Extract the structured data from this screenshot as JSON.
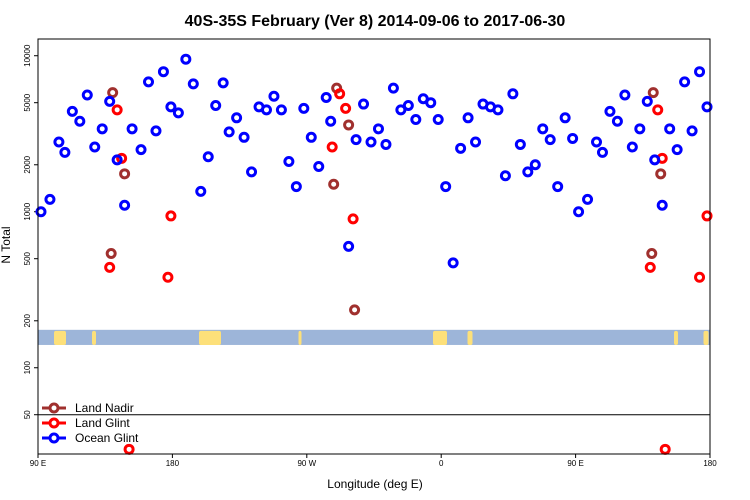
{
  "chart_data": {
    "type": "scatter",
    "title": "40S-35S February (Ver 8)   2014-09-06 to 2017-06-30",
    "xlabel": "Longitude (deg E)",
    "ylabel": "N Total",
    "x_ticks": [
      {
        "label": "90 E",
        "x": 0
      },
      {
        "label": "180",
        "x": 90
      },
      {
        "label": "90 W",
        "x": 180
      },
      {
        "label": "0",
        "x": 270
      },
      {
        "label": "90 E",
        "x": 360
      },
      {
        "label": "180",
        "x": 450
      }
    ],
    "y_ticks": [
      {
        "label": "50",
        "y": 50
      },
      {
        "label": "100",
        "y": 100
      },
      {
        "label": "200",
        "y": 200
      },
      {
        "label": "500",
        "y": 500
      },
      {
        "label": "1000",
        "y": 1000
      },
      {
        "label": "2000",
        "y": 2000
      },
      {
        "label": "5000",
        "y": 5000
      },
      {
        "label": "10000",
        "y": 10000
      }
    ],
    "xlim": [
      0,
      450
    ],
    "ylim_log": [
      28,
      12800
    ],
    "y_scale": "log",
    "map_band": {
      "ymin": 140,
      "ymax": 175,
      "color": "#9db5d9",
      "land_color": "#fde07a"
    },
    "legend_position": "bottom-left",
    "series": [
      {
        "name": "Land Nadir",
        "color": "#a0302e",
        "points": [
          {
            "x": 50,
            "y": 5800
          },
          {
            "x": 58,
            "y": 1750
          },
          {
            "x": 49,
            "y": 540
          },
          {
            "x": 200,
            "y": 6200
          },
          {
            "x": 198,
            "y": 1500
          },
          {
            "x": 208,
            "y": 3600
          },
          {
            "x": 212,
            "y": 235
          },
          {
            "x": 412,
            "y": 5800
          },
          {
            "x": 417,
            "y": 1750
          },
          {
            "x": 411,
            "y": 540
          }
        ]
      },
      {
        "name": "Land Glint",
        "color": "#ff0000",
        "points": [
          {
            "x": 53,
            "y": 4500
          },
          {
            "x": 56,
            "y": 2200
          },
          {
            "x": 48,
            "y": 440
          },
          {
            "x": 87,
            "y": 380
          },
          {
            "x": 89,
            "y": 940
          },
          {
            "x": 61,
            "y": 30
          },
          {
            "x": 202,
            "y": 5700
          },
          {
            "x": 206,
            "y": 4600
          },
          {
            "x": 197,
            "y": 2600
          },
          {
            "x": 211,
            "y": 900
          },
          {
            "x": 415,
            "y": 4500
          },
          {
            "x": 418,
            "y": 2200
          },
          {
            "x": 410,
            "y": 440
          },
          {
            "x": 443,
            "y": 380
          },
          {
            "x": 448,
            "y": 940
          },
          {
            "x": 420,
            "y": 30
          }
        ]
      },
      {
        "name": "Ocean Glint",
        "color": "#0000ff",
        "points": [
          {
            "x": 2,
            "y": 1000
          },
          {
            "x": 8,
            "y": 1200
          },
          {
            "x": 14,
            "y": 2800
          },
          {
            "x": 18,
            "y": 2400
          },
          {
            "x": 23,
            "y": 4400
          },
          {
            "x": 28,
            "y": 3800
          },
          {
            "x": 33,
            "y": 5600
          },
          {
            "x": 38,
            "y": 2600
          },
          {
            "x": 43,
            "y": 3400
          },
          {
            "x": 48,
            "y": 5100
          },
          {
            "x": 53,
            "y": 2150
          },
          {
            "x": 58,
            "y": 1100
          },
          {
            "x": 63,
            "y": 3400
          },
          {
            "x": 69,
            "y": 2500
          },
          {
            "x": 74,
            "y": 6800
          },
          {
            "x": 79,
            "y": 3300
          },
          {
            "x": 84,
            "y": 7900
          },
          {
            "x": 89,
            "y": 4700
          },
          {
            "x": 94,
            "y": 4300
          },
          {
            "x": 99,
            "y": 9500
          },
          {
            "x": 104,
            "y": 6600
          },
          {
            "x": 109,
            "y": 1350
          },
          {
            "x": 114,
            "y": 2250
          },
          {
            "x": 119,
            "y": 4800
          },
          {
            "x": 124,
            "y": 6700
          },
          {
            "x": 128,
            "y": 3250
          },
          {
            "x": 133,
            "y": 4000
          },
          {
            "x": 138,
            "y": 3000
          },
          {
            "x": 143,
            "y": 1800
          },
          {
            "x": 148,
            "y": 4700
          },
          {
            "x": 153,
            "y": 4500
          },
          {
            "x": 158,
            "y": 5500
          },
          {
            "x": 163,
            "y": 4500
          },
          {
            "x": 168,
            "y": 2100
          },
          {
            "x": 173,
            "y": 1450
          },
          {
            "x": 178,
            "y": 4600
          },
          {
            "x": 183,
            "y": 3000
          },
          {
            "x": 188,
            "y": 1950
          },
          {
            "x": 193,
            "y": 5400
          },
          {
            "x": 196,
            "y": 3800
          },
          {
            "x": 208,
            "y": 600
          },
          {
            "x": 213,
            "y": 2900
          },
          {
            "x": 218,
            "y": 4900
          },
          {
            "x": 223,
            "y": 2800
          },
          {
            "x": 228,
            "y": 3400
          },
          {
            "x": 233,
            "y": 2700
          },
          {
            "x": 238,
            "y": 6200
          },
          {
            "x": 243,
            "y": 4500
          },
          {
            "x": 248,
            "y": 4800
          },
          {
            "x": 253,
            "y": 3900
          },
          {
            "x": 258,
            "y": 5300
          },
          {
            "x": 263,
            "y": 5000
          },
          {
            "x": 268,
            "y": 3900
          },
          {
            "x": 273,
            "y": 1450
          },
          {
            "x": 278,
            "y": 470
          },
          {
            "x": 283,
            "y": 2550
          },
          {
            "x": 288,
            "y": 4000
          },
          {
            "x": 293,
            "y": 2800
          },
          {
            "x": 298,
            "y": 4900
          },
          {
            "x": 303,
            "y": 4700
          },
          {
            "x": 308,
            "y": 4500
          },
          {
            "x": 313,
            "y": 1700
          },
          {
            "x": 318,
            "y": 5700
          },
          {
            "x": 323,
            "y": 2700
          },
          {
            "x": 328,
            "y": 1800
          },
          {
            "x": 333,
            "y": 2000
          },
          {
            "x": 338,
            "y": 3400
          },
          {
            "x": 343,
            "y": 2900
          },
          {
            "x": 348,
            "y": 1450
          },
          {
            "x": 353,
            "y": 4000
          },
          {
            "x": 358,
            "y": 2950
          },
          {
            "x": 362,
            "y": 1000
          },
          {
            "x": 368,
            "y": 1200
          },
          {
            "x": 374,
            "y": 2800
          },
          {
            "x": 378,
            "y": 2400
          },
          {
            "x": 383,
            "y": 4400
          },
          {
            "x": 388,
            "y": 3800
          },
          {
            "x": 393,
            "y": 5600
          },
          {
            "x": 398,
            "y": 2600
          },
          {
            "x": 403,
            "y": 3400
          },
          {
            "x": 408,
            "y": 5100
          },
          {
            "x": 413,
            "y": 2150
          },
          {
            "x": 418,
            "y": 1100
          },
          {
            "x": 423,
            "y": 3400
          },
          {
            "x": 428,
            "y": 2500
          },
          {
            "x": 433,
            "y": 6800
          },
          {
            "x": 438,
            "y": 3300
          },
          {
            "x": 443,
            "y": 7900
          },
          {
            "x": 448,
            "y": 4700
          }
        ]
      }
    ]
  }
}
